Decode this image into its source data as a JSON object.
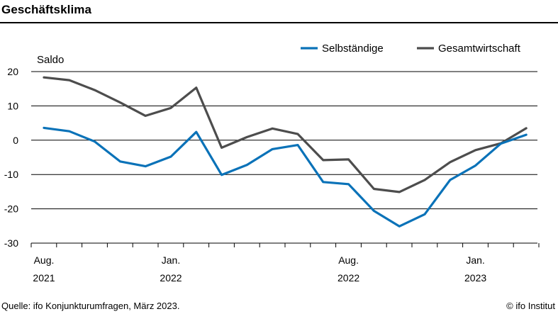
{
  "title": "Geschäftsklima",
  "source": "Quelle: ifo Konjunkturumfragen, März 2023.",
  "copyright": "© ifo Institut",
  "colors": {
    "Selbständige": "#0a72b8",
    "Gesamtwirtschaft": "#4d4d4d",
    "grid": "#000000"
  },
  "chart_data": {
    "type": "line",
    "title": "Geschäftsklima",
    "ylabel": "Saldo",
    "xlabel": "",
    "ylim": [
      -30,
      20
    ],
    "yticks": [
      20,
      10,
      0,
      -10,
      -20,
      -30
    ],
    "grid": true,
    "legend_position": "top-right",
    "x": [
      "2021-08",
      "2021-09",
      "2021-10",
      "2021-11",
      "2021-12",
      "2022-01",
      "2022-02",
      "2022-03",
      "2022-04",
      "2022-05",
      "2022-06",
      "2022-07",
      "2022-08",
      "2022-09",
      "2022-10",
      "2022-11",
      "2022-12",
      "2023-01",
      "2023-02",
      "2023-03"
    ],
    "xtick_labels": [
      {
        "x": "2021-08",
        "line1": "Aug.",
        "line2": "2021"
      },
      {
        "x": "2022-01",
        "line1": "Jan.",
        "line2": "2022"
      },
      {
        "x": "2022-08",
        "line1": "Aug.",
        "line2": "2022"
      },
      {
        "x": "2023-01",
        "line1": "Jan.",
        "line2": "2023"
      }
    ],
    "series": [
      {
        "name": "Selbständige",
        "values": [
          3.6,
          2.6,
          -0.4,
          -6.2,
          -7.6,
          -4.8,
          2.4,
          -10.1,
          -7.2,
          -2.6,
          -1.4,
          -12.2,
          -12.8,
          -20.6,
          -25.1,
          -21.6,
          -11.6,
          -7.4,
          -1.0,
          1.6
        ]
      },
      {
        "name": "Gesamtwirtschaft",
        "values": [
          18.3,
          17.5,
          14.6,
          11.0,
          7.1,
          9.4,
          15.3,
          -2.2,
          0.9,
          3.4,
          1.8,
          -5.8,
          -5.6,
          -14.2,
          -15.1,
          -11.6,
          -6.4,
          -2.9,
          -0.9,
          3.5
        ]
      }
    ]
  }
}
